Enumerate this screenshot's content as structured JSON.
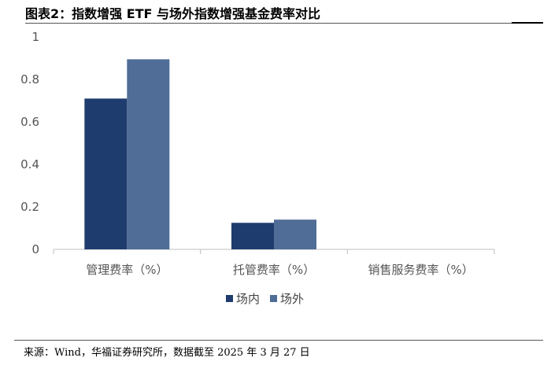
{
  "title": "图表2：指数增强 ETF 与场外指数增强基金费率对比",
  "source": "来源：Wind，华福证券研究所，数据截至 2025 年 3 月 27 日",
  "chart_data": {
    "type": "bar",
    "categories": [
      "管理费率（%）",
      "托管费率（%）",
      "销售服务费率（%）"
    ],
    "series": [
      {
        "name": "场内",
        "values": [
          0.71,
          0.125,
          0
        ],
        "color": "#1f3c6e"
      },
      {
        "name": "场外",
        "values": [
          0.895,
          0.14,
          0
        ],
        "color": "#4f6d97"
      }
    ],
    "ylim": [
      0,
      1
    ],
    "yticks": [
      "0",
      "0.2",
      "0.4",
      "0.6",
      "0.8",
      "1"
    ],
    "legend": "bottom-center",
    "grid": false
  }
}
